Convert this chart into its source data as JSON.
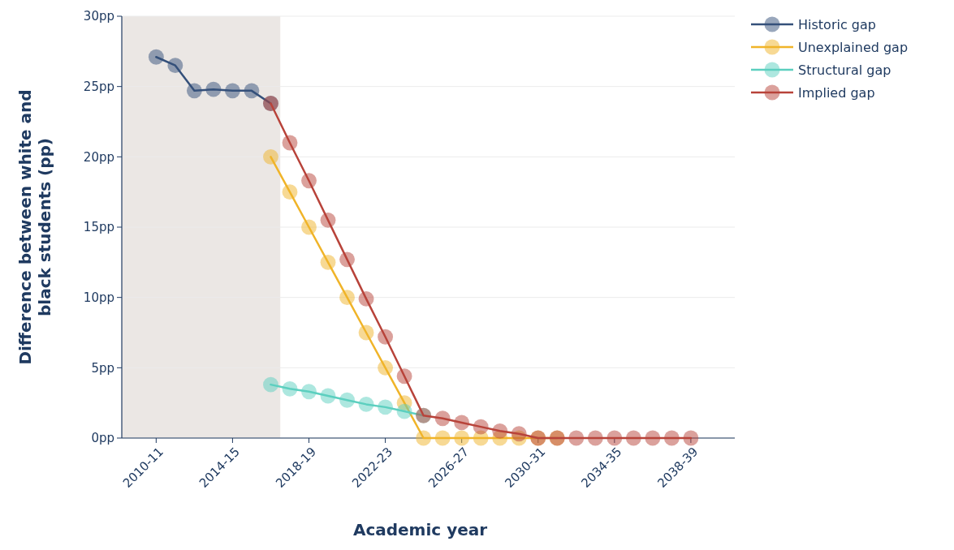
{
  "chart_data": {
    "type": "line",
    "xlabel": "Academic year",
    "ylabel": "Difference between white and black students (pp)",
    "categories": [
      "2010-11",
      null,
      null,
      null,
      "2014-15",
      null,
      null,
      null,
      "2018-19",
      null,
      null,
      null,
      "2022-23",
      null,
      null,
      null,
      "2026-27",
      null,
      null,
      null,
      "2030-31",
      null,
      null,
      null,
      "2034-35",
      null,
      null,
      null,
      "2038-39"
    ],
    "ylim": [
      0,
      30
    ],
    "yticks": [
      {
        "value": 0,
        "label": "0pp"
      },
      {
        "value": 5,
        "label": "5pp"
      },
      {
        "value": 10,
        "label": "10pp"
      },
      {
        "value": 15,
        "label": "15pp"
      },
      {
        "value": 20,
        "label": "20pp"
      },
      {
        "value": 25,
        "label": "25pp"
      },
      {
        "value": 30,
        "label": "30pp"
      }
    ],
    "grid": "y",
    "legend": "top right",
    "marker": "circle",
    "line_style": "solid",
    "series": [
      {
        "name": "Historic gap",
        "color": "#34507a",
        "values": [
          27.1,
          26.5,
          24.7,
          24.8,
          24.7,
          24.7,
          23.8,
          null,
          null,
          null,
          null,
          null,
          null,
          null,
          null,
          null,
          null,
          null,
          null,
          null,
          null,
          null,
          null,
          null,
          null,
          null,
          null,
          null,
          null
        ]
      },
      {
        "name": "Unexplained gap",
        "color": "#f0b429",
        "values": [
          null,
          null,
          null,
          null,
          null,
          null,
          20,
          17.5,
          15,
          12.5,
          10,
          7.5,
          5,
          2.5,
          0,
          0,
          0,
          0,
          0,
          0,
          0,
          0,
          null,
          null,
          null,
          null,
          null,
          null,
          null
        ]
      },
      {
        "name": "Structural gap",
        "color": "#5ccfbf",
        "values": [
          null,
          null,
          null,
          null,
          null,
          null,
          3.8,
          3.5,
          3.3,
          3.0,
          2.7,
          2.4,
          2.2,
          1.9,
          1.6,
          null,
          null,
          null,
          null,
          null,
          null,
          null,
          null,
          null,
          null,
          null,
          null,
          null,
          null
        ]
      },
      {
        "name": "Implied gap",
        "color": "#b8433a",
        "values": [
          null,
          null,
          null,
          null,
          null,
          null,
          23.8,
          21.0,
          18.3,
          15.5,
          12.7,
          9.9,
          7.2,
          4.4,
          1.6,
          1.4,
          1.1,
          0.8,
          0.5,
          0.3,
          0,
          0,
          0,
          0,
          0,
          0,
          0,
          0,
          0
        ]
      }
    ]
  }
}
